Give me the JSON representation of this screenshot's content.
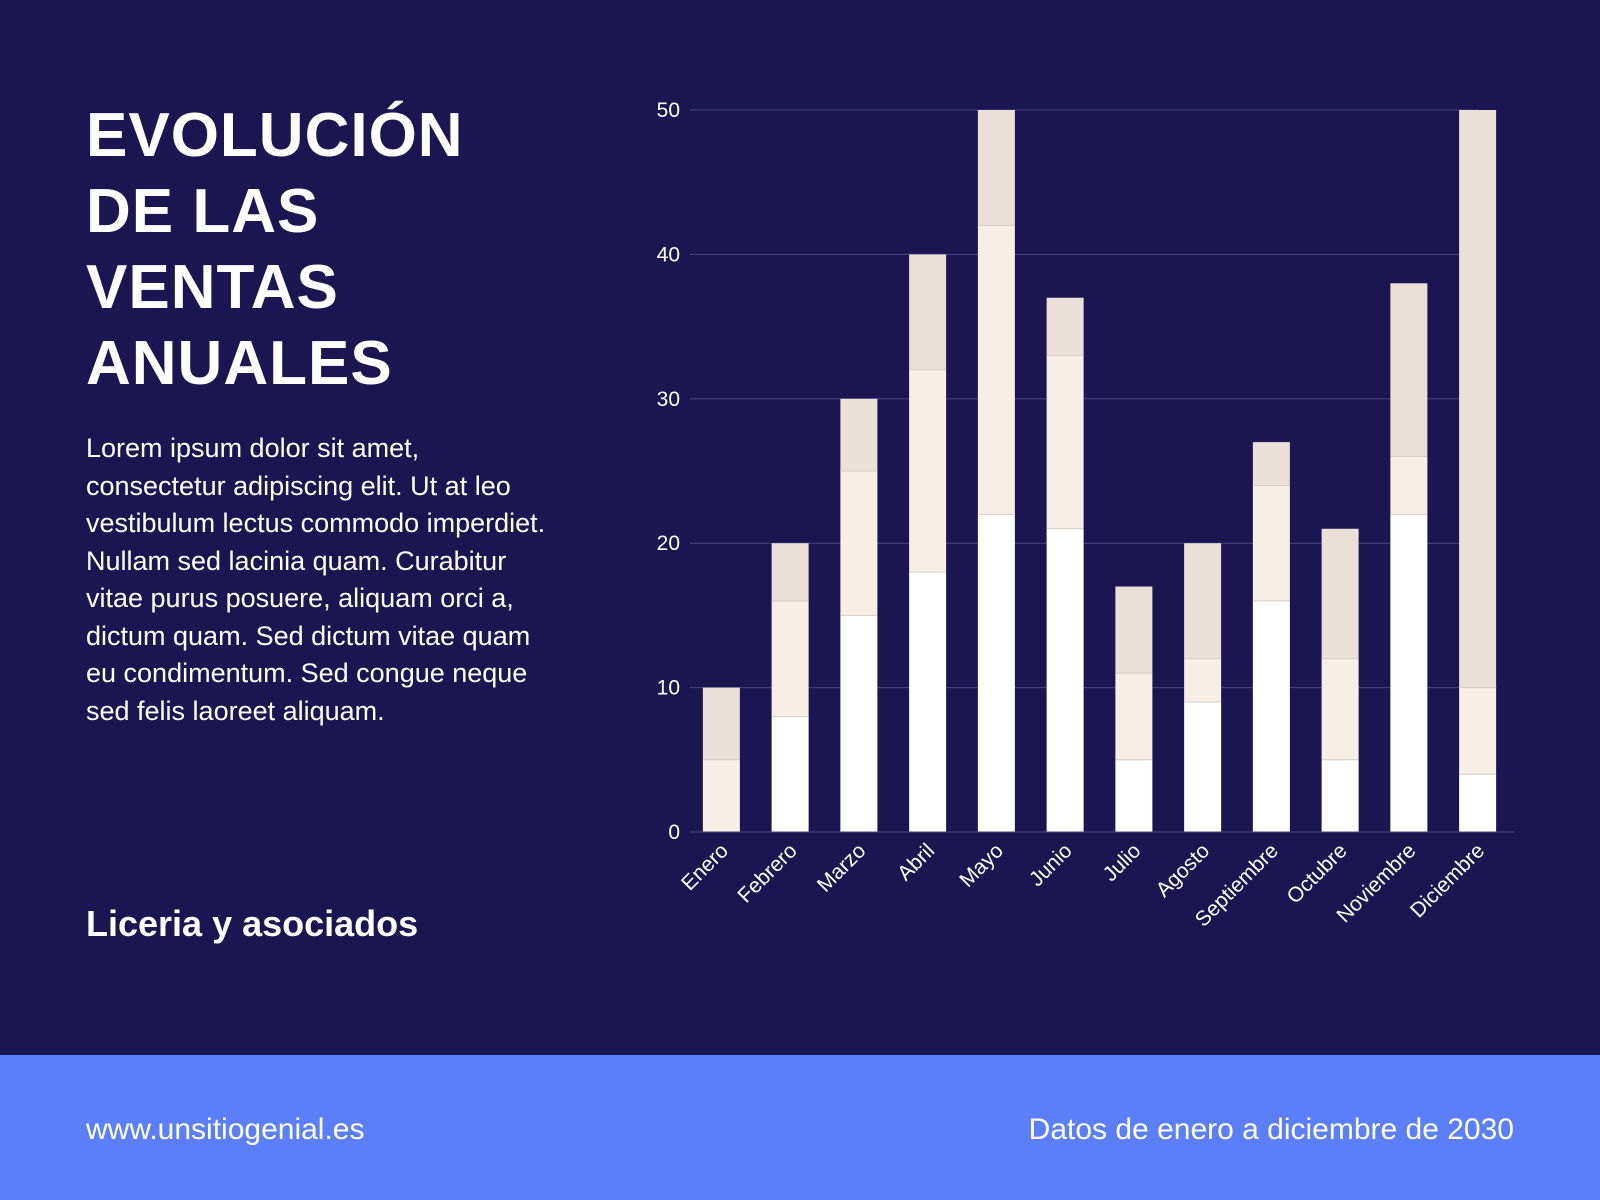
{
  "title_lines": [
    "EVOLUCIÓN",
    "DE LAS",
    "VENTAS",
    "ANUALES"
  ],
  "body": "Lorem ipsum dolor sit amet, consectetur adipiscing elit. Ut at leo vestibulum lectus commodo imperdiet. Nullam sed lacinia quam. Curabitur vitae purus posuere, aliquam orci a, dictum quam. Sed dictum vitae quam eu condimentum. Sed congue neque sed felis laoreet aliquam.",
  "company": "Liceria y asociados",
  "footer": {
    "url": "www.unsitiogenial.es",
    "note": "Datos de enero a diciembre de 2030"
  },
  "colors": {
    "background": "#1b1651",
    "footer": "#5b7ff8",
    "series": [
      "#ffffff",
      "#f7efe6",
      "#eae0d8"
    ],
    "grid": "#4a4580"
  },
  "chart_data": {
    "type": "bar",
    "stacked": true,
    "categories": [
      "Enero",
      "Febrero",
      "Marzo",
      "Abril",
      "Mayo",
      "Junio",
      "Julio",
      "Agosto",
      "Septiembre",
      "Octubre",
      "Noviembre",
      "Diciembre"
    ],
    "series": [
      {
        "values": [
          0,
          8,
          15,
          18,
          22,
          21,
          5,
          9,
          16,
          5,
          22,
          4
        ]
      },
      {
        "values": [
          5,
          8,
          10,
          14,
          20,
          12,
          6,
          3,
          8,
          7,
          4,
          6
        ]
      },
      {
        "values": [
          5,
          4,
          5,
          8,
          8,
          4,
          6,
          8,
          3,
          9,
          12,
          40
        ]
      }
    ],
    "ylim": [
      0,
      50
    ],
    "yticks": [
      0,
      10,
      20,
      30,
      40,
      50
    ],
    "grid": true,
    "legend": "none"
  }
}
